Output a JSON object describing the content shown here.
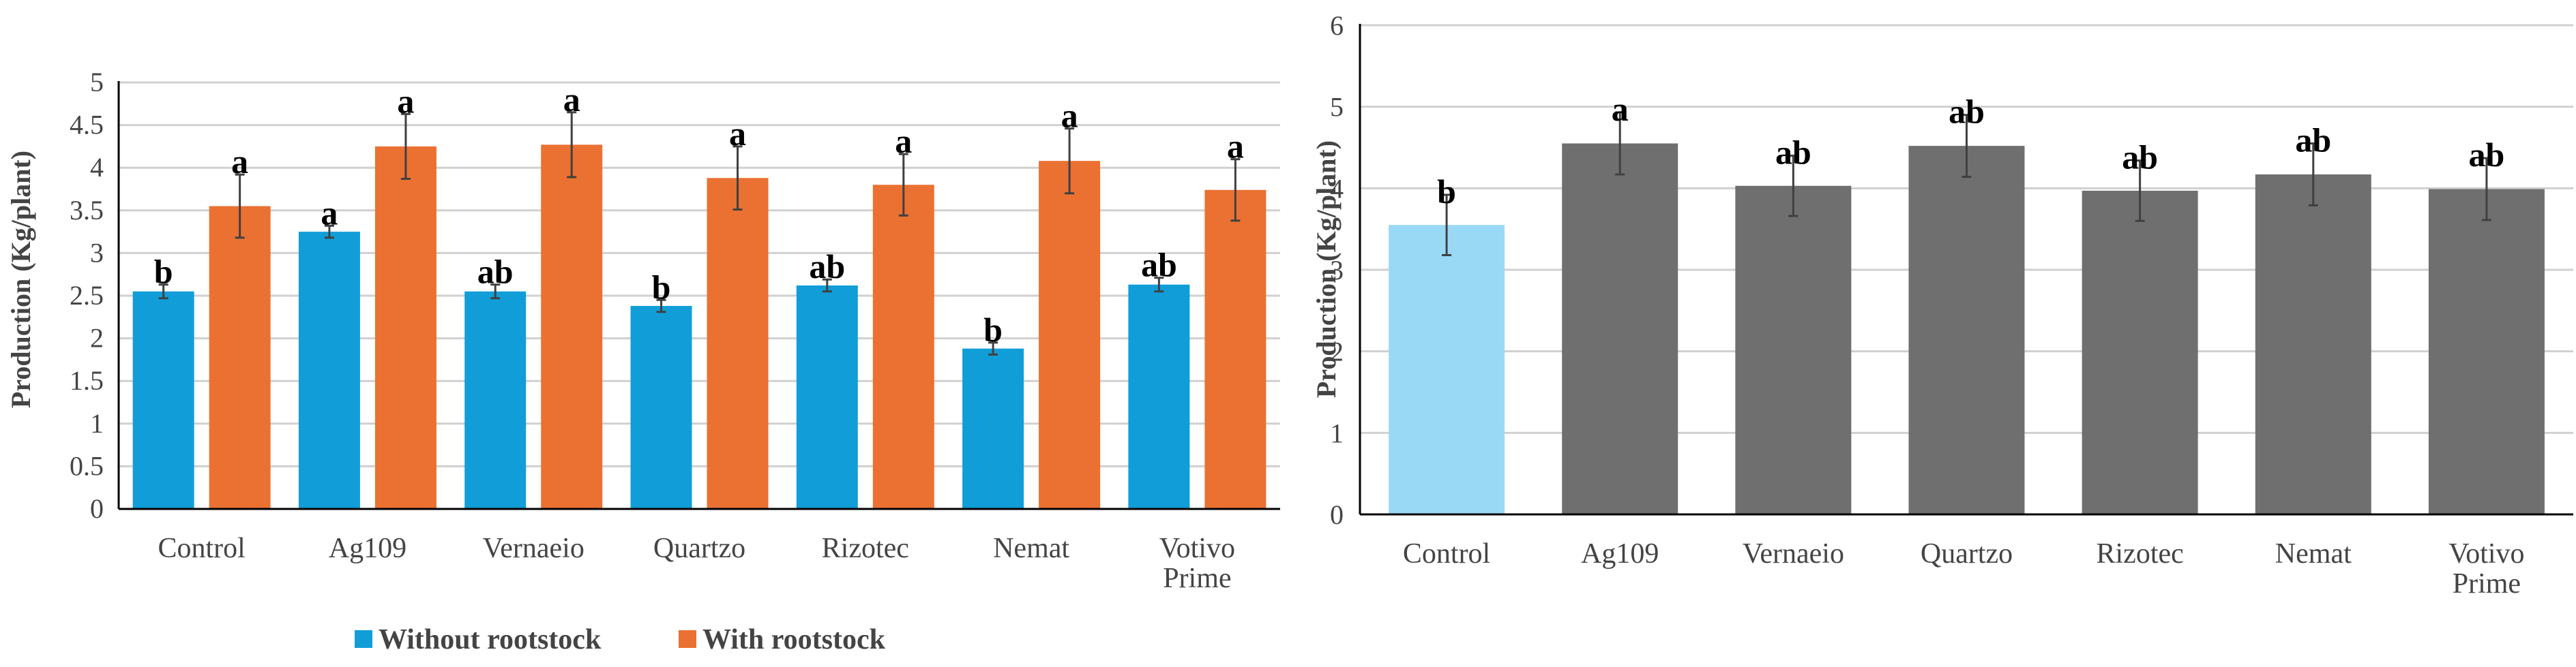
{
  "colors": {
    "without_rootstock": "#119ed8",
    "with_rootstock": "#ea7132",
    "control_light": "#9ad9f6",
    "treatment_gray": "#6f6f6f",
    "gridline": "#d0d0d0",
    "axis": "#000000",
    "error_bar": "#404040"
  },
  "chart_data": [
    {
      "type": "bar",
      "title": "",
      "xlabel": "",
      "ylabel": "Production (Kg/plant)",
      "ylim": [
        0,
        5
      ],
      "yticks": [
        "0",
        "0.5",
        "1",
        "1.5",
        "2",
        "2.5",
        "3",
        "3.5",
        "4",
        "4.5",
        "5"
      ],
      "grid": true,
      "legend_position": "bottom",
      "categories": [
        "Control",
        "Ag109",
        "Vernaeio",
        "Quartzo",
        "Rizotec",
        "Nemat",
        "Votivo Prime"
      ],
      "series": [
        {
          "name": "Without rootstock",
          "color_key": "without_rootstock",
          "values": [
            2.55,
            3.25,
            2.55,
            2.38,
            2.62,
            1.88,
            2.63
          ],
          "errors": [
            0.08,
            0.07,
            0.08,
            0.07,
            0.07,
            0.07,
            0.08
          ],
          "significance": [
            "b",
            "a",
            "ab",
            "b",
            "ab",
            "b",
            "ab"
          ]
        },
        {
          "name": "With rootstock",
          "color_key": "with_rootstock",
          "values": [
            3.55,
            4.25,
            4.27,
            3.88,
            3.8,
            4.08,
            3.74
          ],
          "errors": [
            0.37,
            0.38,
            0.38,
            0.37,
            0.36,
            0.38,
            0.36
          ],
          "significance": [
            "a",
            "a",
            "a",
            "a",
            "a",
            "a",
            "a"
          ]
        }
      ]
    },
    {
      "type": "bar",
      "title": "",
      "xlabel": "",
      "ylabel": "Production (Kg/plant)",
      "ylim": [
        0,
        6
      ],
      "yticks": [
        "0",
        "1",
        "2",
        "3",
        "4",
        "5",
        "6"
      ],
      "grid": true,
      "categories": [
        "Control",
        "Ag109",
        "Vernaeio",
        "Quartzo",
        "Rizotec",
        "Nemat",
        "Votivo Prime"
      ],
      "values": [
        3.55,
        4.55,
        4.03,
        4.52,
        3.97,
        4.17,
        3.99
      ],
      "errors": [
        0.37,
        0.38,
        0.37,
        0.38,
        0.37,
        0.38,
        0.38
      ],
      "significance": [
        "b",
        "a",
        "ab",
        "ab",
        "ab",
        "ab",
        "ab"
      ],
      "bar_color_keys": [
        "control_light",
        "treatment_gray",
        "treatment_gray",
        "treatment_gray",
        "treatment_gray",
        "treatment_gray",
        "treatment_gray"
      ]
    }
  ]
}
